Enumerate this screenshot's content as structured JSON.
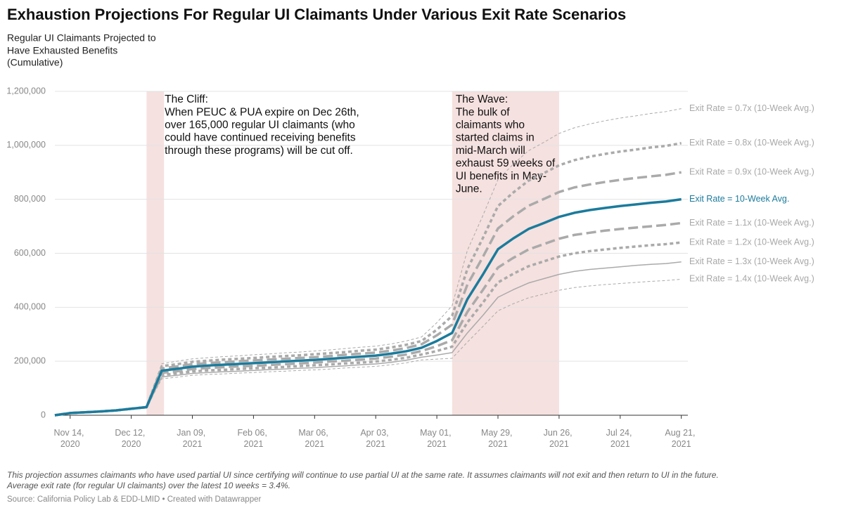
{
  "chart_data": {
    "type": "line",
    "title": "Exhaustion Projections For Regular UI Claimants Under Various Exit Rate Scenarios",
    "subtitle": [
      "Regular UI Claimants Projected to",
      "Have Exhausted Benefits",
      "(Cumulative)"
    ],
    "notes": [
      "This projection assumes claimants who have used partial UI since certifying will continue to use partial UI at the same rate. It assumes claimants will not exit and then return to UI in the future.",
      "Average exit rate (for regular UI claimants) over the latest 10 weeks = 3.4%."
    ],
    "source": "Source: California Policy Lab & EDD-LMID • Created with Datawrapper",
    "grid": true,
    "xlim": [
      "2020-11-07",
      "2021-08-24"
    ],
    "ylim": [
      0,
      1200000
    ],
    "yticks": [
      0,
      {
        "value": 200000,
        "label": "200,000"
      },
      {
        "value": 400000,
        "label": "400,000"
      },
      {
        "value": 600000,
        "label": "600,000"
      },
      {
        "value": 800000,
        "label": "800,000"
      },
      {
        "value": 1000000,
        "label": "1,000,000"
      },
      {
        "value": 1200000,
        "label": "1,200,000"
      }
    ],
    "xticks": [
      {
        "value": "2020-11-14",
        "label": "Nov 14, 2020"
      },
      {
        "value": "2020-12-12",
        "label": "Dec 12, 2020"
      },
      {
        "value": "2021-01-09",
        "label": "Jan 09, 2021"
      },
      {
        "value": "2021-02-06",
        "label": "Feb 06, 2021"
      },
      {
        "value": "2021-03-06",
        "label": "Mar 06, 2021"
      },
      {
        "value": "2021-04-03",
        "label": "Apr 03, 2021"
      },
      {
        "value": "2021-05-01",
        "label": "May 01, 2021"
      },
      {
        "value": "2021-05-29",
        "label": "May 29, 2021"
      },
      {
        "value": "2021-06-26",
        "label": "Jun 26, 2021"
      },
      {
        "value": "2021-07-24",
        "label": "Jul 24, 2021"
      },
      {
        "value": "2021-08-21",
        "label": "Aug 21, 2021"
      }
    ],
    "annotations": [
      {
        "x": [
          "2020-12-19",
          "2020-12-27"
        ],
        "color": "#f5e1df",
        "lines": [
          "The Cliff:",
          "When PEUC & PUA expire on Dec 26th,",
          "over 165,000 regular UI claimants (who",
          "could have continued receiving benefits",
          "through these programs) will be cut off."
        ]
      },
      {
        "x": [
          "2021-05-08",
          "2021-06-26"
        ],
        "color": "#f5e1df",
        "lines": [
          "The Wave:",
          "The bulk of",
          "claimants who",
          "started claims in",
          "mid-March will",
          "exhaust 59 weeks of",
          "UI benefits in May-",
          "June."
        ]
      }
    ],
    "x": [
      "2020-11-07",
      "2020-11-14",
      "2020-11-21",
      "2020-11-28",
      "2020-12-05",
      "2020-12-12",
      "2020-12-19",
      "2020-12-26",
      "2021-01-02",
      "2021-01-09",
      "2021-01-16",
      "2021-01-23",
      "2021-01-30",
      "2021-02-06",
      "2021-02-13",
      "2021-02-20",
      "2021-02-27",
      "2021-03-06",
      "2021-03-13",
      "2021-03-20",
      "2021-03-27",
      "2021-04-03",
      "2021-04-10",
      "2021-04-17",
      "2021-04-24",
      "2021-05-01",
      "2021-05-08",
      "2021-05-15",
      "2021-05-22",
      "2021-05-29",
      "2021-06-05",
      "2021-06-12",
      "2021-06-19",
      "2021-06-26",
      "2021-07-03",
      "2021-07-10",
      "2021-07-17",
      "2021-07-24",
      "2021-07-31",
      "2021-08-07",
      "2021-08-14",
      "2021-08-21"
    ],
    "series": [
      {
        "name": "Exit Rate = 0.7x (10-Week Avg.)",
        "color": "#aaaaaa",
        "style": "dashed-thin",
        "values": [
          0,
          8000,
          11000,
          14000,
          18000,
          24000,
          30000,
          191000,
          200000,
          209000,
          213000,
          217000,
          220000,
          224000,
          227000,
          231000,
          234000,
          238000,
          242000,
          247000,
          252000,
          256000,
          264000,
          275000,
          290000,
          343000,
          406000,
          611000,
          738000,
          873000,
          930000,
          980000,
          1011000,
          1044000,
          1065000,
          1079000,
          1091000,
          1101000,
          1109000,
          1118000,
          1125000,
          1136000
        ]
      },
      {
        "name": "Exit Rate = 0.8x (10-Week Avg.)",
        "color": "#aaaaaa",
        "style": "dashed-thick",
        "values": [
          0,
          8000,
          11000,
          14000,
          18000,
          24000,
          30000,
          182000,
          189000,
          198000,
          202000,
          206000,
          209000,
          212000,
          216000,
          219000,
          222000,
          226000,
          230000,
          234000,
          239000,
          243000,
          251000,
          261000,
          275000,
          317000,
          368000,
          542000,
          655000,
          775000,
          825000,
          869000,
          897000,
          926000,
          945000,
          958000,
          968000,
          977000,
          984000,
          992000,
          998000,
          1008000
        ]
      },
      {
        "name": "Exit Rate = 0.9x (10-Week Avg.)",
        "color": "#aaaaaa",
        "style": "longdash-thick",
        "values": [
          0,
          8000,
          11000,
          14000,
          18000,
          24000,
          30000,
          173000,
          181000,
          189000,
          193000,
          196000,
          200000,
          203000,
          206000,
          209000,
          212000,
          215000,
          219000,
          224000,
          228000,
          232000,
          239000,
          249000,
          263000,
          296000,
          336000,
          484000,
          585000,
          692000,
          737000,
          776000,
          801000,
          827000,
          844000,
          855000,
          864000,
          872000,
          879000,
          885000,
          891000,
          900000
        ]
      },
      {
        "name": "Exit Rate = 10-Week Avg.",
        "color": "#1b7b9c",
        "style": "solid-thick",
        "values": [
          0,
          8000,
          11000,
          14000,
          18000,
          24000,
          30000,
          165000,
          172000,
          180000,
          184000,
          187000,
          190000,
          193000,
          196000,
          199000,
          202000,
          205000,
          209000,
          213000,
          217000,
          221000,
          228000,
          237000,
          250000,
          275000,
          305000,
          430000,
          520000,
          615000,
          655000,
          690000,
          712000,
          735000,
          750000,
          760000,
          768000,
          775000,
          781000,
          787000,
          792000,
          800000
        ]
      },
      {
        "name": "Exit Rate = 1.1x (10-Week Avg.)",
        "color": "#aaaaaa",
        "style": "longdash-thick",
        "values": [
          0,
          8000,
          11000,
          14000,
          18000,
          24000,
          30000,
          157000,
          163000,
          171000,
          175000,
          178000,
          181000,
          183000,
          186000,
          189000,
          192000,
          195000,
          199000,
          202000,
          206000,
          210000,
          217000,
          225000,
          238000,
          256000,
          278000,
          383000,
          463000,
          547000,
          583000,
          614000,
          634000,
          654000,
          668000,
          676000,
          684000,
          690000,
          695000,
          700000,
          705000,
          712000
        ]
      },
      {
        "name": "Exit Rate = 1.2x (10-Week Avg.)",
        "color": "#aaaaaa",
        "style": "dashed-thick",
        "values": [
          0,
          8000,
          11000,
          14000,
          18000,
          24000,
          30000,
          149000,
          155000,
          162000,
          166000,
          168000,
          171000,
          174000,
          176000,
          179000,
          182000,
          185000,
          188000,
          192000,
          195000,
          199000,
          205000,
          213000,
          225000,
          238000,
          254000,
          344000,
          416000,
          492000,
          524000,
          552000,
          570000,
          588000,
          600000,
          608000,
          614000,
          620000,
          625000,
          630000,
          634000,
          640000
        ]
      },
      {
        "name": "Exit Rate = 1.3x (10-Week Avg.)",
        "color": "#aaaaaa",
        "style": "solid-thin",
        "values": [
          0,
          8000,
          11000,
          14000,
          18000,
          24000,
          30000,
          142000,
          148000,
          155000,
          158000,
          161000,
          163000,
          166000,
          169000,
          171000,
          174000,
          176000,
          180000,
          183000,
          187000,
          190000,
          196000,
          204000,
          215000,
          223000,
          232000,
          305000,
          369000,
          437000,
          465000,
          490000,
          506000,
          522000,
          533000,
          540000,
          545000,
          550000,
          555000,
          559000,
          562000,
          568000
        ]
      },
      {
        "name": "Exit Rate = 1.4x (10-Week Avg.)",
        "color": "#aaaaaa",
        "style": "dashed-thin",
        "values": [
          0,
          8000,
          11000,
          14000,
          18000,
          24000,
          30000,
          135000,
          141000,
          148000,
          151000,
          153000,
          156000,
          158000,
          161000,
          163000,
          166000,
          168000,
          171000,
          175000,
          178000,
          181000,
          187000,
          194000,
          205000,
          208000,
          211000,
          271000,
          328000,
          387000,
          413000,
          435000,
          449000,
          463000,
          473000,
          479000,
          484000,
          488000,
          492000,
          496000,
          499000,
          504000
        ]
      }
    ]
  }
}
